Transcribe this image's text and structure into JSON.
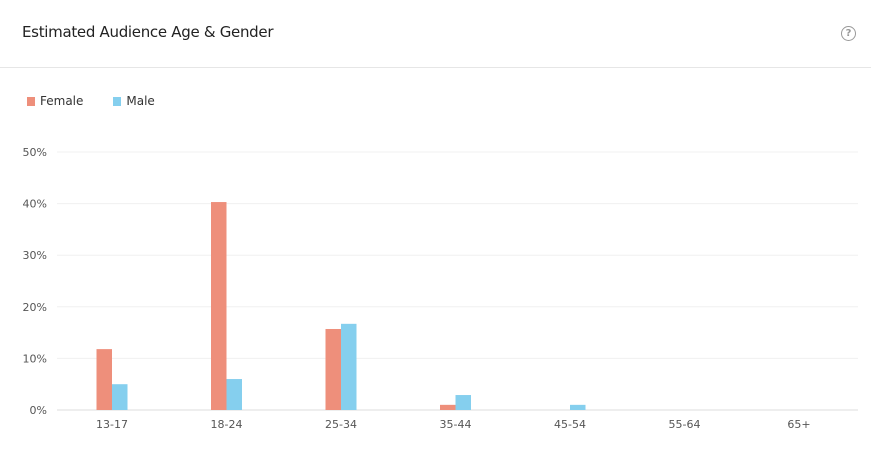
{
  "header": {
    "title": "Estimated Audience Age & Gender",
    "help_icon": "question-circle-icon"
  },
  "chart_data": {
    "type": "bar",
    "title": "",
    "xlabel": "",
    "ylabel": "",
    "categories": [
      "13-17",
      "18-24",
      "25-34",
      "35-44",
      "45-54",
      "55-64",
      "65+"
    ],
    "series": [
      {
        "name": "Female",
        "color": "#ee8f7b",
        "values": [
          11.8,
          40.3,
          15.7,
          1.0,
          0,
          0,
          0
        ]
      },
      {
        "name": "Male",
        "color": "#85cfee",
        "values": [
          5.0,
          6.0,
          16.7,
          2.9,
          1.0,
          0,
          0
        ]
      }
    ],
    "ylim": [
      0,
      50
    ],
    "yticks": [
      "0%",
      "10%",
      "20%",
      "30%",
      "40%",
      "50%"
    ],
    "grid": true,
    "legend_position": "top-left"
  }
}
